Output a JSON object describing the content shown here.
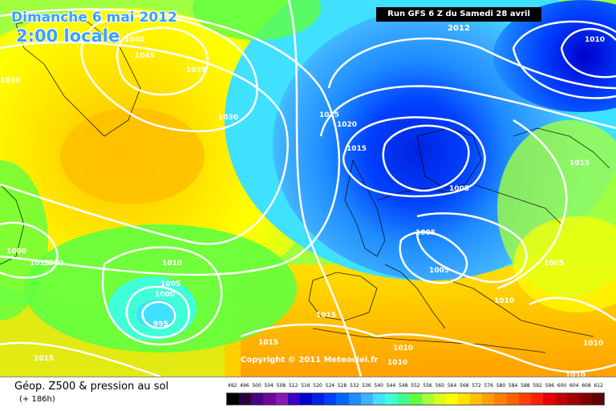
{
  "header": {
    "date": "Dimanche 6 mai 2012",
    "time": "2:00 locale",
    "run": "Run GFS 6 Z du Samedi 28 avril 2012"
  },
  "copyright": "Copyright © 2011 Meteociel.fr",
  "footer": {
    "parameter": "Géop. Z500 & pression au sol",
    "lead": "(+ 186h)"
  },
  "legend": {
    "values": [
      "492",
      "496",
      "500",
      "504",
      "508",
      "512",
      "516",
      "520",
      "524",
      "528",
      "532",
      "536",
      "540",
      "544",
      "548",
      "552",
      "556",
      "560",
      "564",
      "568",
      "572",
      "576",
      "580",
      "584",
      "588",
      "592",
      "596",
      "600",
      "604",
      "608",
      "612"
    ],
    "colors": [
      "#000000",
      "#2b0040",
      "#4b0082",
      "#6a0a9a",
      "#8a1ab0",
      "#3a00c0",
      "#0000cc",
      "#0022e0",
      "#0040ff",
      "#0066ff",
      "#1e8cff",
      "#40b0ff",
      "#40e0ff",
      "#40ffd8",
      "#40ff90",
      "#60ff40",
      "#a0ff40",
      "#d8ff20",
      "#ffff00",
      "#ffe000",
      "#ffc000",
      "#ffa000",
      "#ff8000",
      "#ff6000",
      "#ff4000",
      "#ff2000",
      "#e80000",
      "#c00000",
      "#a00000",
      "#800000",
      "#600000"
    ]
  },
  "isobar_labels": [
    {
      "text": "1040"
    },
    {
      "text": "1045"
    },
    {
      "text": "1035"
    },
    {
      "text": "1030"
    },
    {
      "text": "1030"
    },
    {
      "text": "1025"
    },
    {
      "text": "1020"
    },
    {
      "text": "1015"
    },
    {
      "text": "1005"
    },
    {
      "text": "1005"
    },
    {
      "text": "1005"
    },
    {
      "text": "1010"
    },
    {
      "text": "1010"
    },
    {
      "text": "1010"
    },
    {
      "text": "1005"
    },
    {
      "text": "1000"
    },
    {
      "text": "995"
    },
    {
      "text": "1015"
    },
    {
      "text": "1015"
    },
    {
      "text": "1015"
    },
    {
      "text": "1010"
    },
    {
      "text": "1010"
    },
    {
      "text": "1010"
    },
    {
      "text": "1010"
    },
    {
      "text": "1015"
    },
    {
      "text": "1010"
    },
    {
      "text": "1000"
    },
    {
      "text": "1010"
    },
    {
      "text": "1005"
    }
  ]
}
